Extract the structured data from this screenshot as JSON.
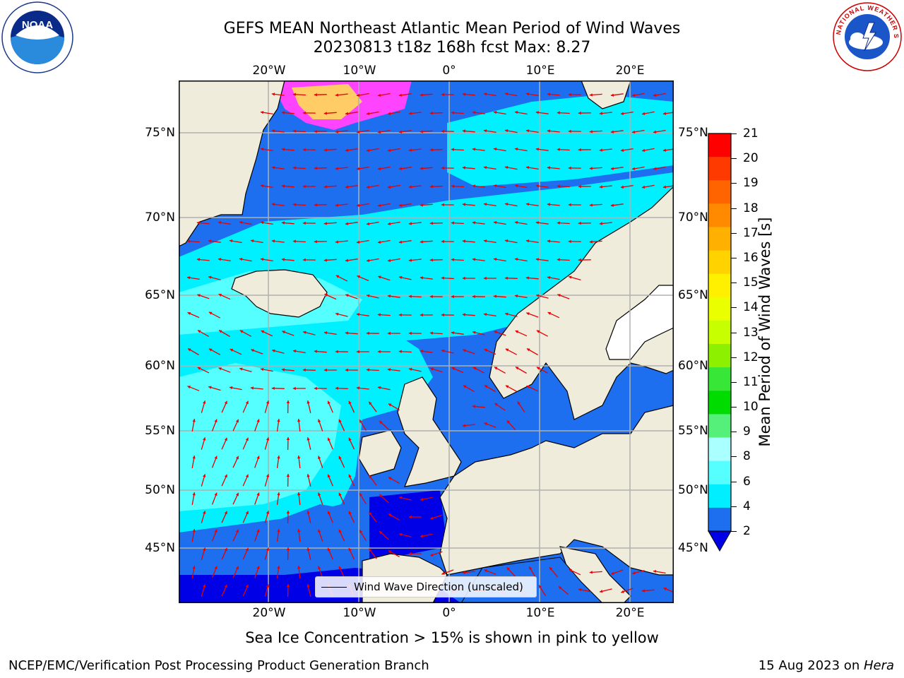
{
  "title": {
    "line1": "GEFS MEAN Northeast Atlantic Mean Period of Wind Waves",
    "line2": "20230813 t18z 168h fcst   Max: 8.27"
  },
  "map": {
    "lon_ticks": [
      "20°W",
      "10°W",
      "0°",
      "10°E",
      "20°E"
    ],
    "lat_ticks": [
      "75°N",
      "70°N",
      "65°N",
      "60°N",
      "55°N",
      "50°N",
      "45°N"
    ],
    "legend_label": "Wind Wave Direction (unscaled)",
    "ocean_colors": {
      "band_2_4": "#1e6ef0",
      "band_4_6": "#00f0ff",
      "band_6_8": "#55ffff",
      "band_0_2": "#0000e6",
      "land": "#efecdc",
      "lake": "#ffffff",
      "sea_ice_low": "#ff44ff",
      "sea_ice_high": "#ffcc66"
    },
    "arrow_color": "#e60000"
  },
  "colorbar": {
    "label": "Mean Period of Wind Waves [s]",
    "ticks": [
      "21",
      "20",
      "19",
      "18",
      "17",
      "16",
      "15",
      "14",
      "13",
      "12",
      "11",
      "10",
      "9",
      "8",
      "6",
      "4",
      "2"
    ],
    "colors": [
      "#ff0000",
      "#ff3a00",
      "#ff6400",
      "#ff8a00",
      "#ffb000",
      "#ffd200",
      "#fff000",
      "#eaff00",
      "#c8ff00",
      "#8cf000",
      "#37e637",
      "#00dc00",
      "#55f07a",
      "#aaffff",
      "#55ffff",
      "#00eeff",
      "#1e6ef0"
    ],
    "extend_color": "#0000e6"
  },
  "subtitle": "Sea Ice Concentration > 15% is shown in pink to yellow",
  "footer": {
    "left": "NCEP/EMC/Verification Post Processing Product Generation Branch",
    "right_prefix": "15 Aug 2023 on ",
    "right_machine": "Hera"
  },
  "logos": {
    "noaa_text": "NOAA",
    "nws_text": "NATIONAL WEATHER SERVICE"
  }
}
